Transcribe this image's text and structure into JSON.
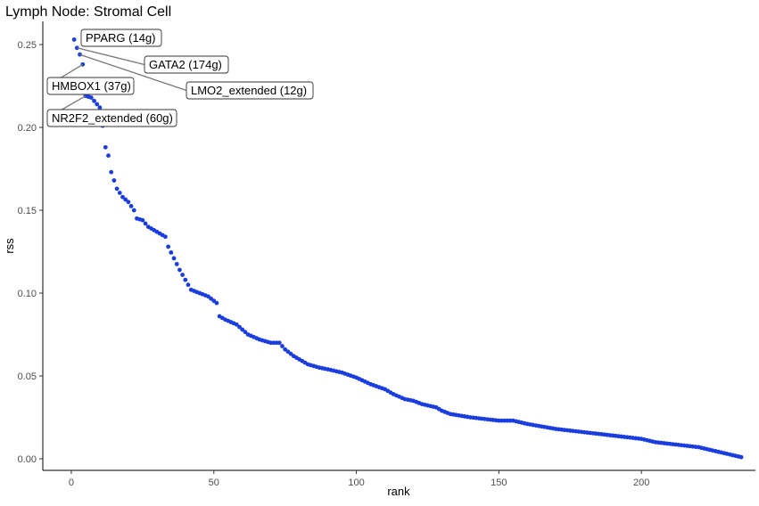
{
  "chart_data": {
    "type": "scatter",
    "title": "Lymph Node: Stromal Cell",
    "xlabel": "rank",
    "ylabel": "rss",
    "xlim": [
      -10,
      240
    ],
    "ylim": [
      -0.007,
      0.264
    ],
    "x_ticks": [
      0,
      50,
      100,
      150,
      200
    ],
    "y_ticks": [
      0.0,
      0.05,
      0.1,
      0.15,
      0.2,
      0.25
    ],
    "x_tick_labels": [
      "0",
      "50",
      "100",
      "150",
      "200"
    ],
    "y_tick_labels": [
      "0.00",
      "0.05",
      "0.10",
      "0.15",
      "0.20",
      "0.25"
    ],
    "grid": false,
    "legend": "none",
    "point_color": "#1a3de0",
    "leader_color": "#777777",
    "breakpoints": [
      [
        1,
        0.253
      ],
      [
        2,
        0.248
      ],
      [
        3,
        0.244
      ],
      [
        4,
        0.238
      ],
      [
        5,
        0.219
      ],
      [
        7,
        0.218
      ],
      [
        8,
        0.216
      ],
      [
        9,
        0.214
      ],
      [
        10,
        0.212
      ],
      [
        11,
        0.201
      ],
      [
        12,
        0.188
      ],
      [
        13,
        0.183
      ],
      [
        14,
        0.173
      ],
      [
        16,
        0.163
      ],
      [
        18,
        0.158
      ],
      [
        20,
        0.155
      ],
      [
        22,
        0.15
      ],
      [
        23,
        0.145
      ],
      [
        25,
        0.144
      ],
      [
        27,
        0.14
      ],
      [
        29,
        0.138
      ],
      [
        31,
        0.136
      ],
      [
        33,
        0.134
      ],
      [
        34,
        0.128
      ],
      [
        36,
        0.121
      ],
      [
        38,
        0.114
      ],
      [
        40,
        0.108
      ],
      [
        42,
        0.102
      ],
      [
        45,
        0.1
      ],
      [
        48,
        0.098
      ],
      [
        51,
        0.094
      ],
      [
        52,
        0.086
      ],
      [
        54,
        0.084
      ],
      [
        58,
        0.081
      ],
      [
        60,
        0.078
      ],
      [
        62,
        0.075
      ],
      [
        66,
        0.072
      ],
      [
        70,
        0.07
      ],
      [
        73,
        0.07
      ],
      [
        75,
        0.066
      ],
      [
        78,
        0.062
      ],
      [
        80,
        0.06
      ],
      [
        83,
        0.057
      ],
      [
        87,
        0.055
      ],
      [
        90,
        0.054
      ],
      [
        95,
        0.052
      ],
      [
        100,
        0.049
      ],
      [
        105,
        0.045
      ],
      [
        110,
        0.042
      ],
      [
        113,
        0.039
      ],
      [
        117,
        0.036
      ],
      [
        120,
        0.035
      ],
      [
        123,
        0.033
      ],
      [
        128,
        0.031
      ],
      [
        130,
        0.029
      ],
      [
        133,
        0.027
      ],
      [
        140,
        0.025
      ],
      [
        150,
        0.023
      ],
      [
        155,
        0.023
      ],
      [
        160,
        0.021
      ],
      [
        170,
        0.018
      ],
      [
        180,
        0.016
      ],
      [
        190,
        0.014
      ],
      [
        200,
        0.012
      ],
      [
        205,
        0.01
      ],
      [
        215,
        0.008
      ],
      [
        220,
        0.007
      ],
      [
        225,
        0.005
      ],
      [
        230,
        0.003
      ],
      [
        235,
        0.001
      ]
    ],
    "annotations": [
      {
        "label": "PPARG (14g)",
        "x": 1,
        "y": 0.253
      },
      {
        "label": "GATA2 (174g)",
        "x": 2,
        "y": 0.248
      },
      {
        "label": "LMO2_extended (12g)",
        "x": 3,
        "y": 0.244
      },
      {
        "label": "HMBOX1 (37g)",
        "x": 4,
        "y": 0.238
      },
      {
        "label": "NR2F2_extended (60g)",
        "x": 5,
        "y": 0.219
      }
    ]
  }
}
